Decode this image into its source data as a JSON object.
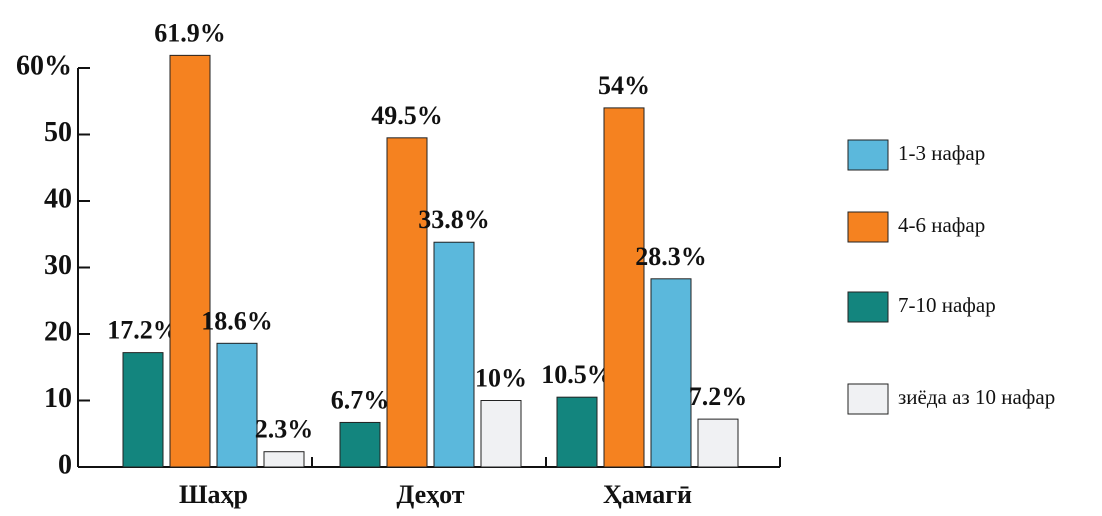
{
  "chart_data": {
    "type": "bar",
    "categories": [
      "Шаҳр",
      "Деҳот",
      "Ҳамагӣ"
    ],
    "series": [
      {
        "name": "1-3 нафар",
        "color": "#5bb8dc",
        "values": [
          18.6,
          33.8,
          28.3
        ],
        "value_labels": [
          "18.6%",
          "33.8%",
          "28.3%"
        ]
      },
      {
        "name": "4-6 нафар",
        "color": "#f58220",
        "values": [
          61.9,
          49.5,
          54
        ],
        "value_labels": [
          "61.9%",
          "49.5%",
          "54%"
        ]
      },
      {
        "name": "7-10 нафар",
        "color": "#13857e",
        "values": [
          17.2,
          6.7,
          10.5
        ],
        "value_labels": [
          "17.2%",
          "6.7%",
          "10.5%"
        ]
      },
      {
        "name": "зиёда аз 10 нафар",
        "color": "#f0f1f3",
        "values": [
          2.3,
          10,
          7.2
        ],
        "value_labels": [
          "2.3%",
          "10%",
          "7.2%"
        ]
      }
    ],
    "ylim": [
      0,
      60
    ],
    "yticks": [
      0,
      10,
      20,
      30,
      40,
      50,
      {
        "value": 60,
        "label": "60%"
      }
    ],
    "legend": "right"
  }
}
